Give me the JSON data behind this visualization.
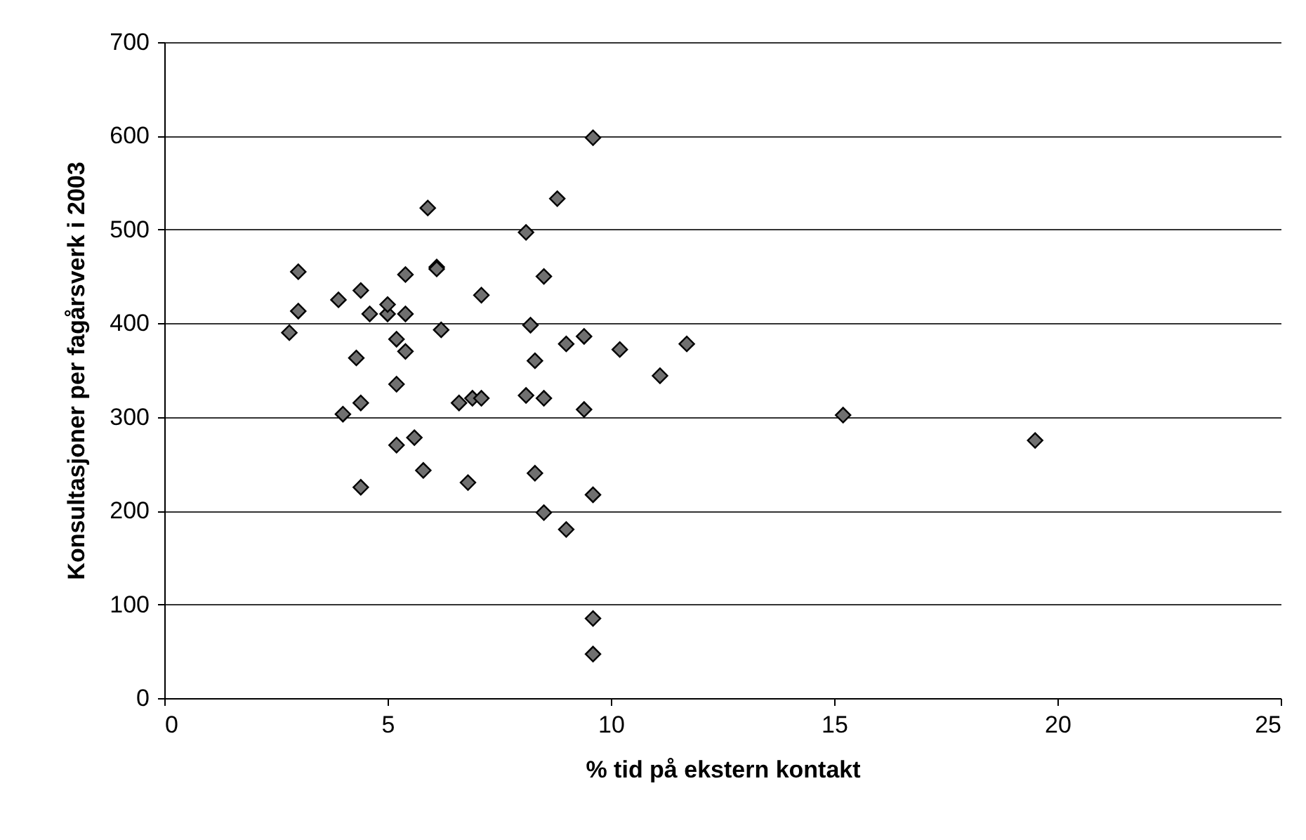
{
  "chart_data": {
    "type": "scatter",
    "xlabel": "% tid på ekstern kontakt",
    "ylabel": "Konsultasjoner per fagårsverk i 2003",
    "x": [
      2.8,
      3.0,
      3.0,
      3.9,
      4.0,
      4.3,
      4.4,
      4.4,
      4.4,
      4.6,
      5.0,
      5.0,
      5.2,
      5.2,
      5.2,
      5.4,
      5.4,
      5.4,
      5.6,
      5.8,
      5.9,
      6.1,
      6.1,
      6.2,
      6.6,
      6.8,
      6.9,
      7.1,
      7.1,
      8.1,
      8.1,
      8.2,
      8.3,
      8.3,
      8.5,
      8.5,
      8.5,
      8.8,
      9.0,
      9.0,
      9.4,
      9.4,
      9.6,
      9.6,
      9.6,
      9.6,
      10.2,
      11.1,
      11.7,
      15.2,
      19.5
    ],
    "series": [
      {
        "color": "#707070",
        "values": [
          390,
          413,
          455,
          425,
          303,
          363,
          435,
          225,
          315,
          410,
          410,
          420,
          383,
          335,
          270,
          370,
          452,
          410,
          278,
          243,
          523,
          460,
          458,
          393,
          315,
          230,
          320,
          320,
          430,
          497,
          323,
          398,
          360,
          240,
          450,
          320,
          198,
          533,
          378,
          180,
          386,
          308,
          598,
          217,
          85,
          47,
          372,
          344,
          378,
          302,
          275
        ]
      }
    ],
    "marker": "diamond",
    "grid": "y",
    "xlim": [
      0,
      25
    ],
    "xticks": [
      0,
      5,
      10,
      15,
      20,
      25
    ],
    "ylim": [
      0,
      700
    ],
    "yticks": [
      0,
      100,
      200,
      300,
      400,
      500,
      600,
      700
    ]
  }
}
